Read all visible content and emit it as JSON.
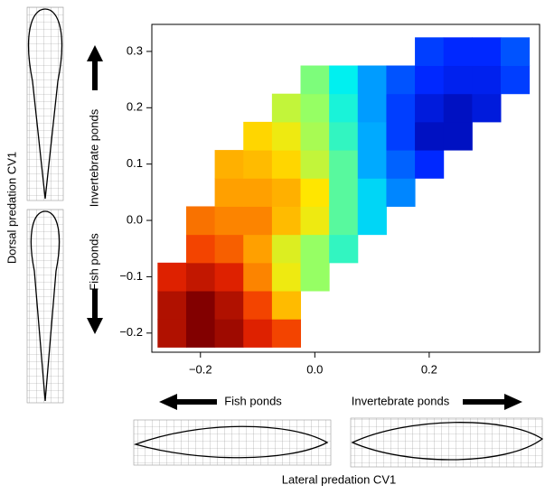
{
  "chart_data": {
    "type": "heatmap",
    "xlabel": "Lateral predation CV1",
    "ylabel": "Dorsal predation CV1",
    "annotations": [
      "Invertebrate ponds",
      "Fish ponds",
      "Fish ponds",
      "Invertebrate ponds"
    ],
    "xlim": [
      -0.285,
      0.393
    ],
    "ylim": [
      -0.234,
      0.348
    ],
    "xticks": [
      {
        "value": -0.2,
        "label": "−0.2"
      },
      {
        "value": 0,
        "label": "0.0"
      },
      0.2
    ],
    "yticks": [
      {
        "value": -0.2,
        "label": "−0.2"
      },
      {
        "value": -0.1,
        "label": "−0.1"
      },
      {
        "value": 0,
        "label": "0.0"
      },
      0.1,
      0.2,
      0.3
    ],
    "x": [
      -0.25,
      -0.2,
      -0.15,
      -0.1,
      -0.05,
      0,
      0.05,
      0.1,
      0.15,
      0.2,
      0.25,
      0.3,
      0.35
    ],
    "y": [
      -0.2,
      -0.15,
      -0.1,
      -0.05,
      0,
      0.05,
      0.1,
      0.15,
      0.2,
      0.25,
      0.3
    ],
    "z": [
      [
        0.95,
        1,
        0.97,
        0.9,
        0.85,
        null,
        null,
        null,
        null,
        null,
        null,
        null,
        null
      ],
      [
        0.95,
        1,
        0.95,
        0.85,
        0.7,
        null,
        null,
        null,
        null,
        null,
        null,
        null,
        null
      ],
      [
        0.9,
        0.93,
        0.9,
        0.78,
        0.6,
        0.5,
        null,
        null,
        null,
        null,
        null,
        null,
        null
      ],
      [
        null,
        0.85,
        0.82,
        0.75,
        0.58,
        0.5,
        0.42,
        null,
        null,
        null,
        null,
        null,
        null
      ],
      [
        null,
        0.8,
        0.78,
        0.78,
        0.7,
        0.6,
        0.45,
        0.35,
        null,
        null,
        null,
        null,
        null
      ],
      [
        null,
        null,
        0.75,
        0.75,
        0.72,
        0.62,
        0.45,
        0.35,
        0.25,
        null,
        null,
        null,
        null
      ],
      [
        null,
        null,
        0.72,
        0.7,
        0.65,
        0.55,
        0.45,
        0.3,
        0.2,
        0.12,
        null,
        null,
        null
      ],
      [
        null,
        null,
        null,
        0.65,
        0.6,
        0.52,
        0.42,
        0.3,
        0.15,
        0.05,
        0.05,
        null,
        null
      ],
      [
        null,
        null,
        null,
        null,
        0.55,
        0.5,
        0.4,
        0.28,
        0.15,
        0.08,
        0.05,
        0.08,
        null
      ],
      [
        null,
        null,
        null,
        null,
        null,
        0.48,
        0.38,
        0.28,
        0.18,
        0.12,
        0.1,
        0.1,
        0.15
      ],
      [
        null,
        null,
        null,
        null,
        null,
        null,
        null,
        null,
        null,
        0.15,
        0.12,
        0.12,
        0.18
      ]
    ]
  }
}
